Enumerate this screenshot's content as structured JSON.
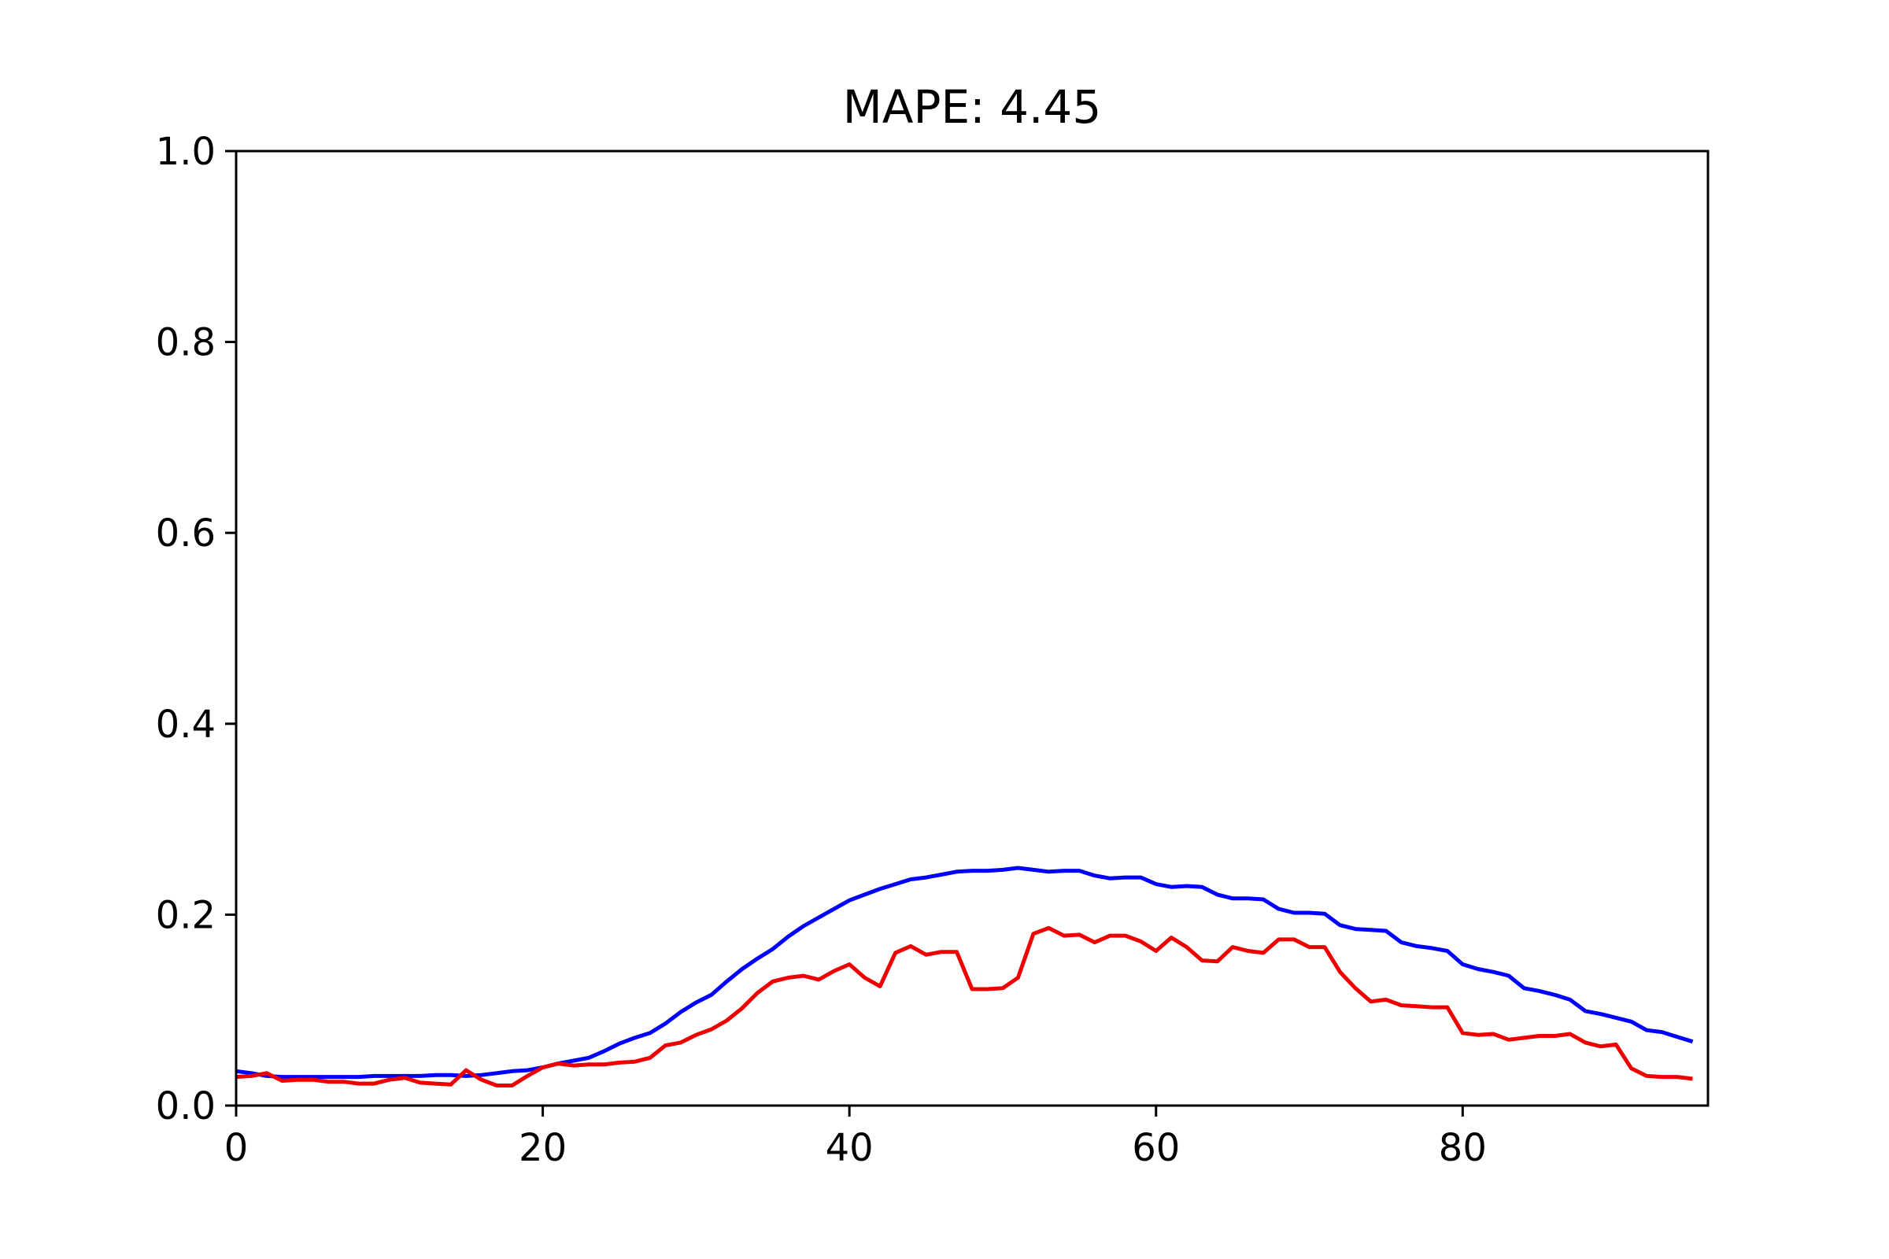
{
  "chart_data": {
    "type": "line",
    "title": "MAPE: 4.45",
    "xlabel": "",
    "ylabel": "",
    "xlim": [
      0,
      96
    ],
    "ylim": [
      0,
      1.0
    ],
    "xticks": [
      0,
      20,
      40,
      60,
      80
    ],
    "xtick_labels": [
      "0",
      "20",
      "40",
      "60",
      "80"
    ],
    "yticks": [
      0,
      0.2,
      0.4,
      0.6,
      0.8,
      1.0
    ],
    "ytick_labels": [
      "0.0",
      "0.2",
      "0.4",
      "0.6",
      "0.8",
      "1.0"
    ],
    "grid": false,
    "legend": "none",
    "series": [
      {
        "color": "#0000ff",
        "x": [
          0,
          1,
          2,
          3,
          4,
          5,
          6,
          7,
          8,
          9,
          10,
          11,
          12,
          13,
          14,
          15,
          16,
          17,
          18,
          19,
          20,
          21,
          22,
          23,
          24,
          25,
          26,
          27,
          28,
          29,
          30,
          31,
          32,
          33,
          34,
          35,
          36,
          37,
          38,
          39,
          40,
          41,
          42,
          43,
          44,
          45,
          46,
          47,
          48,
          49,
          50,
          51,
          52,
          53,
          54,
          55,
          56,
          57,
          58,
          59,
          60,
          61,
          62,
          63,
          64,
          65,
          66,
          67,
          68,
          69,
          70,
          71,
          72,
          73,
          74,
          75,
          76,
          77,
          78,
          79,
          80,
          81,
          82,
          83,
          84,
          85,
          86,
          87,
          88,
          89,
          90,
          91,
          92,
          93,
          94,
          95
        ],
        "values": [
          0.036,
          0.034,
          0.031,
          0.03,
          0.03,
          0.03,
          0.03,
          0.03,
          0.03,
          0.031,
          0.031,
          0.031,
          0.031,
          0.032,
          0.032,
          0.031,
          0.032,
          0.034,
          0.036,
          0.037,
          0.04,
          0.044,
          0.047,
          0.05,
          0.057,
          0.065,
          0.071,
          0.076,
          0.086,
          0.098,
          0.108,
          0.116,
          0.13,
          0.143,
          0.154,
          0.164,
          0.177,
          0.188,
          0.197,
          0.206,
          0.215,
          0.221,
          0.227,
          0.232,
          0.237,
          0.239,
          0.242,
          0.245,
          0.246,
          0.246,
          0.247,
          0.249,
          0.247,
          0.245,
          0.246,
          0.246,
          0.241,
          0.238,
          0.239,
          0.239,
          0.232,
          0.229,
          0.23,
          0.229,
          0.221,
          0.217,
          0.217,
          0.216,
          0.206,
          0.202,
          0.202,
          0.201,
          0.189,
          0.185,
          0.184,
          0.183,
          0.171,
          0.167,
          0.165,
          0.162,
          0.148,
          0.143,
          0.14,
          0.136,
          0.123,
          0.12,
          0.116,
          0.111,
          0.099,
          0.096,
          0.092,
          0.088,
          0.079,
          0.077,
          0.072,
          0.067
        ]
      },
      {
        "color": "#ee0000",
        "x": [
          0,
          1,
          2,
          3,
          4,
          5,
          6,
          7,
          8,
          9,
          10,
          11,
          12,
          13,
          14,
          15,
          16,
          17,
          18,
          19,
          20,
          21,
          22,
          23,
          24,
          25,
          26,
          27,
          28,
          29,
          30,
          31,
          32,
          33,
          34,
          35,
          36,
          37,
          38,
          39,
          40,
          41,
          42,
          43,
          44,
          45,
          46,
          47,
          48,
          49,
          50,
          51,
          52,
          53,
          54,
          55,
          56,
          57,
          58,
          59,
          60,
          61,
          62,
          63,
          64,
          65,
          66,
          67,
          68,
          69,
          70,
          71,
          72,
          73,
          74,
          75,
          76,
          77,
          78,
          79,
          80,
          81,
          82,
          83,
          84,
          85,
          86,
          87,
          88,
          89,
          90,
          91,
          92,
          93,
          94,
          95
        ],
        "values": [
          0.03,
          0.031,
          0.034,
          0.026,
          0.027,
          0.027,
          0.025,
          0.025,
          0.023,
          0.023,
          0.027,
          0.029,
          0.024,
          0.023,
          0.022,
          0.037,
          0.027,
          0.021,
          0.021,
          0.031,
          0.04,
          0.044,
          0.042,
          0.043,
          0.043,
          0.045,
          0.046,
          0.05,
          0.063,
          0.066,
          0.074,
          0.08,
          0.089,
          0.102,
          0.118,
          0.13,
          0.134,
          0.136,
          0.132,
          0.141,
          0.148,
          0.134,
          0.125,
          0.16,
          0.167,
          0.158,
          0.161,
          0.161,
          0.122,
          0.122,
          0.123,
          0.134,
          0.18,
          0.186,
          0.178,
          0.179,
          0.171,
          0.178,
          0.178,
          0.172,
          0.162,
          0.176,
          0.166,
          0.152,
          0.151,
          0.166,
          0.162,
          0.16,
          0.174,
          0.174,
          0.166,
          0.166,
          0.14,
          0.123,
          0.109,
          0.111,
          0.105,
          0.104,
          0.103,
          0.103,
          0.076,
          0.074,
          0.075,
          0.069,
          0.071,
          0.073,
          0.073,
          0.075,
          0.066,
          0.062,
          0.064,
          0.039,
          0.031,
          0.03,
          0.03,
          0.028
        ]
      }
    ]
  }
}
